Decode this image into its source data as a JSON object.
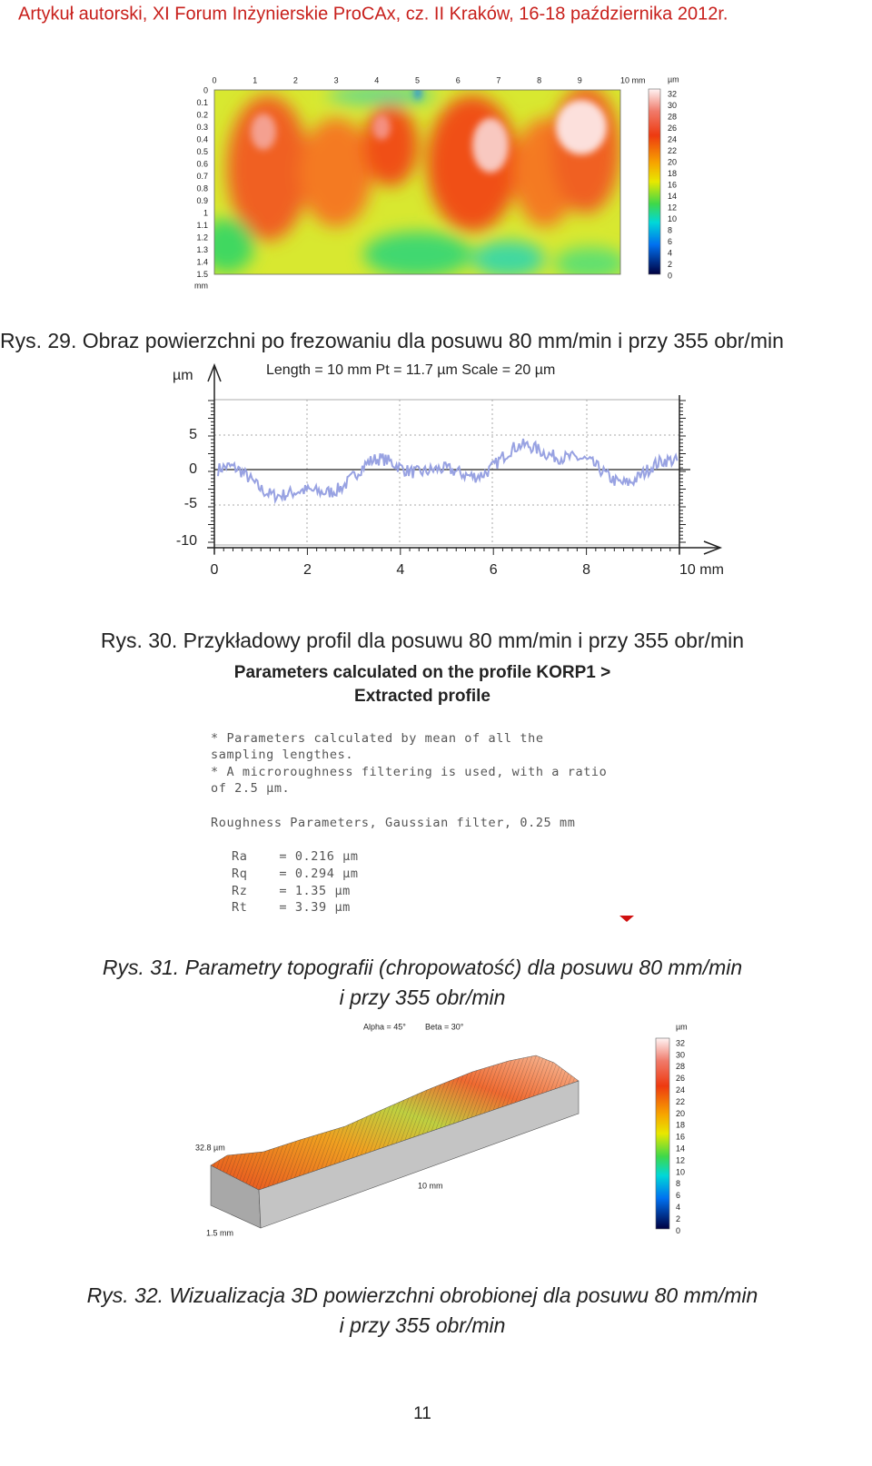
{
  "header": {
    "title": "Artykuł autorski, XI Forum Inżynierskie ProCAx, cz. II Kraków, 16-18 października 2012r."
  },
  "fig29": {
    "x_labels": [
      "0",
      "1",
      "2",
      "3",
      "4",
      "5",
      "6",
      "7",
      "8",
      "9",
      "10 mm"
    ],
    "y_labels": [
      "0",
      "0.1",
      "0.2",
      "0.3",
      "0.4",
      "0.5",
      "0.6",
      "0.7",
      "0.8",
      "0.9",
      "1",
      "1.1",
      "1.2",
      "1.3",
      "1.4",
      "1.5"
    ],
    "y_unit": "mm",
    "colorbar_unit": "µm",
    "colorbar_labels": [
      "32",
      "30",
      "28",
      "26",
      "24",
      "22",
      "20",
      "18",
      "16",
      "14",
      "12",
      "10",
      "8",
      "6",
      "4",
      "2",
      "0"
    ],
    "caption": "Rys. 29. Obraz powierzchni po frezowaniu dla posuwu 80 mm/min i przy 355 obr/min"
  },
  "fig30": {
    "y_unit": "µm",
    "title": "Length = 10 mm  Pt = 11.7 µm  Scale = 20 µm",
    "y_labels": [
      "5",
      "0",
      "-5",
      "-10"
    ],
    "x_labels": [
      "0",
      "2",
      "4",
      "6",
      "8",
      "10 mm"
    ],
    "caption": "Rys. 30. Przykładowy profil dla posuwu 80 mm/min i przy 355 obr/min"
  },
  "fig31": {
    "title": [
      "Parameters calculated on the profile KORP1 >",
      "Extracted profile"
    ],
    "notes": [
      "* Parameters calculated by mean of all the",
      "sampling lengthes.",
      "* A microroughness filtering is used, with a ratio",
      "of 2.5 µm."
    ],
    "heading": "Roughness Parameters, Gaussian filter, 0.25 mm",
    "params": [
      "Ra    = 0.216 µm",
      "Rq    = 0.294 µm",
      "Rz    = 1.35 µm",
      "Rt    = 3.39 µm"
    ],
    "caption": [
      "Rys. 31. Parametry topografii (chropowatość) dla posuwu 80 mm/min",
      "i przy 355 obr/min"
    ]
  },
  "fig32": {
    "alpha": "Alpha = 45°",
    "beta": "Beta = 30°",
    "colorbar_unit": "µm",
    "colorbar_labels": [
      "32",
      "30",
      "28",
      "26",
      "24",
      "22",
      "20",
      "18",
      "16",
      "14",
      "12",
      "10",
      "8",
      "6",
      "4",
      "2",
      "0"
    ],
    "height_label": "32.8 µm",
    "length_label": "10 mm",
    "width_label": "1.5 mm",
    "caption": [
      "Rys. 32. Wizualizacja 3D powierzchni obrobionej dla posuwu 80 mm/min",
      "i przy 355 obr/min"
    ]
  },
  "footer": {
    "page": "11"
  }
}
